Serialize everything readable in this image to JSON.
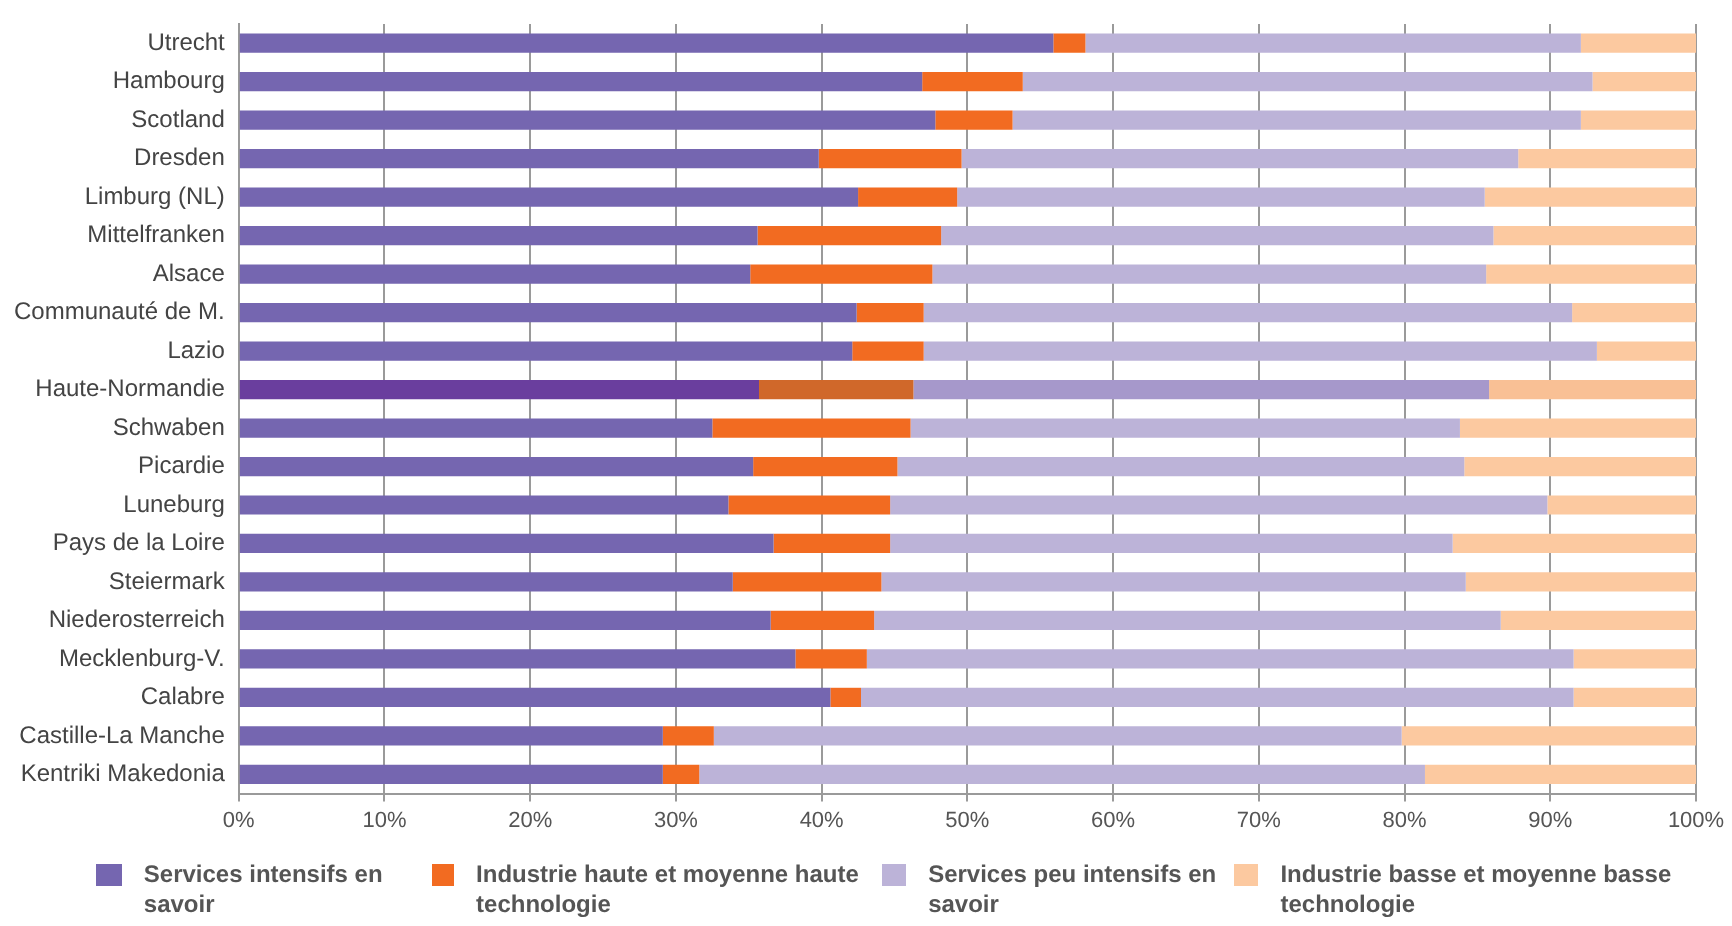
{
  "chart_data": {
    "type": "bar",
    "orientation": "horizontal",
    "stacked": true,
    "categories": [
      "Utrecht",
      "Hambourg",
      "Scotland",
      "Dresden",
      "Limburg (NL)",
      "Mittelfranken",
      "Alsace",
      "Communauté de M.",
      "Lazio",
      "Haute-Normandie",
      "Schwaben",
      "Picardie",
      "Luneburg",
      "Pays de la Loire",
      "Steiermark",
      "Niederosterreich",
      "Mecklenburg-V.",
      "Calabre",
      "Castille-La Manche",
      "Kentriki Makedonia"
    ],
    "series": [
      {
        "name": "Services intensifs en savoir",
        "color": "#7566b0",
        "colors": [
          "#7566b0",
          "#7566b0",
          "#7566b0",
          "#7566b0",
          "#7566b0",
          "#7566b0",
          "#7566b0",
          "#7566b0",
          "#7566b0",
          "#6a3e9e",
          "#7566b0",
          "#7566b0",
          "#7566b0",
          "#7566b0",
          "#7566b0",
          "#7566b0",
          "#7566b0",
          "#7566b0",
          "#7566b0",
          "#7566b0"
        ],
        "values": [
          55.9,
          46.9,
          47.8,
          39.8,
          42.5,
          35.6,
          35.1,
          42.4,
          42.1,
          35.7,
          32.5,
          35.3,
          33.6,
          36.7,
          33.9,
          36.5,
          38.2,
          40.6,
          29.1,
          29.1
        ]
      },
      {
        "name": "Industrie haute et moyenne haute technologie",
        "color": "#f26b21",
        "colors": [
          "#f26b21",
          "#f26b21",
          "#f26b21",
          "#f26b21",
          "#f26b21",
          "#f26b21",
          "#f26b21",
          "#f26b21",
          "#f26b21",
          "#d0682a",
          "#f26b21",
          "#f26b21",
          "#f26b21",
          "#f26b21",
          "#f26b21",
          "#f26b21",
          "#f26b21",
          "#f26b21",
          "#f26b21",
          "#f26b21"
        ],
        "values": [
          2.2,
          6.9,
          5.3,
          9.8,
          6.8,
          12.6,
          12.5,
          4.6,
          4.9,
          10.6,
          13.6,
          9.9,
          11.1,
          8.0,
          10.2,
          7.1,
          4.9,
          2.1,
          3.5,
          2.5
        ]
      },
      {
        "name": "Services peu intensifs en savoir",
        "color": "#bcb3d8",
        "colors": [
          "#bcb3d8",
          "#bcb3d8",
          "#bcb3d8",
          "#bcb3d8",
          "#bcb3d8",
          "#bcb3d8",
          "#bcb3d8",
          "#bcb3d8",
          "#bcb3d8",
          "#a698cb",
          "#bcb3d8",
          "#bcb3d8",
          "#bcb3d8",
          "#bcb3d8",
          "#bcb3d8",
          "#bcb3d8",
          "#bcb3d8",
          "#bcb3d8",
          "#bcb3d8",
          "#bcb3d8"
        ],
        "values": [
          34.0,
          39.1,
          39.0,
          38.2,
          36.2,
          37.9,
          38.0,
          44.5,
          46.2,
          39.5,
          37.7,
          38.9,
          45.1,
          38.6,
          40.1,
          43.0,
          48.5,
          48.9,
          47.2,
          49.8
        ]
      },
      {
        "name": "Industrie basse et moyenne basse technologie",
        "color": "#fcc9a0",
        "colors": [
          "#fcc9a0",
          "#fcc9a0",
          "#fcc9a0",
          "#fcc9a0",
          "#fcc9a0",
          "#fcc9a0",
          "#fcc9a0",
          "#fcc9a0",
          "#fcc9a0",
          "#f9c095",
          "#fcc9a0",
          "#fcc9a0",
          "#fcc9a0",
          "#fcc9a0",
          "#fcc9a0",
          "#fcc9a0",
          "#fcc9a0",
          "#fcc9a0",
          "#fcc9a0",
          "#fcc9a0"
        ],
        "values": [
          7.9,
          7.1,
          7.9,
          12.2,
          14.5,
          13.9,
          14.4,
          8.5,
          6.8,
          14.2,
          16.2,
          15.9,
          10.2,
          16.7,
          15.8,
          13.4,
          8.4,
          8.4,
          20.2,
          18.6
        ]
      }
    ],
    "xlim": [
      0,
      100
    ],
    "xticks": [
      {
        "value": 0,
        "label": "0%"
      },
      {
        "value": 10,
        "label": "10%"
      },
      {
        "value": 20,
        "label": "20%"
      },
      {
        "value": 30,
        "label": "30%"
      },
      {
        "value": 40,
        "label": "40%"
      },
      {
        "value": 50,
        "label": "50%"
      },
      {
        "value": 60,
        "label": "60%"
      },
      {
        "value": 70,
        "label": "70%"
      },
      {
        "value": 80,
        "label": "80%"
      },
      {
        "value": 90,
        "label": "90%"
      },
      {
        "value": 100,
        "label": "100%"
      }
    ],
    "grid": "x",
    "legend": "bottom"
  }
}
